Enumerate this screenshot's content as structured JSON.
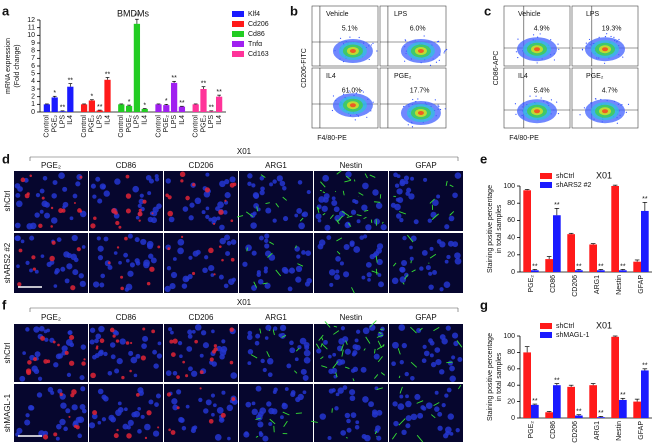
{
  "panel_labels": [
    "a",
    "b",
    "c",
    "d",
    "e",
    "f",
    "g"
  ],
  "chart_data": [
    {
      "type": "bar",
      "group_by": "series",
      "title": "BMDMs",
      "ylabel": [
        "mRNA expression",
        "(Fold change)"
      ],
      "categories": [
        "Control",
        "PGE₂",
        "LPS",
        "IL4"
      ],
      "series": [
        {
          "name": "Klf4",
          "color": "#1a1aff",
          "values": [
            1,
            1.9,
            0.1,
            3.3
          ],
          "errors": [
            0.05,
            0.15,
            0.05,
            0.4
          ],
          "annotations": [
            null,
            "*",
            "**",
            "**"
          ]
        },
        {
          "name": "Cd206",
          "color": "#ff1a1a",
          "values": [
            1,
            1.5,
            0.2,
            4.2
          ],
          "errors": [
            0.05,
            0.1,
            0.05,
            0.3
          ],
          "annotations": [
            null,
            "*",
            "**",
            "**"
          ]
        },
        {
          "name": "Cd86",
          "color": "#22cc22",
          "values": [
            1,
            0.8,
            11.5,
            0.4
          ],
          "errors": [
            0.05,
            0.1,
            0.6,
            0.05
          ],
          "annotations": [
            null,
            "*",
            "**",
            "*"
          ]
        },
        {
          "name": "Tnfα",
          "color": "#a020f0",
          "values": [
            1,
            0.9,
            3.8,
            0.7
          ],
          "errors": [
            0.05,
            0.1,
            0.2,
            0.05
          ],
          "annotations": [
            null,
            "*",
            "**",
            "**"
          ]
        },
        {
          "name": "Cd163",
          "color": "#ff3399",
          "values": [
            1,
            3.0,
            0.1,
            2.0
          ],
          "errors": [
            0.05,
            0.3,
            0.05,
            0.2
          ],
          "annotations": [
            null,
            "**",
            "**",
            "**"
          ]
        }
      ],
      "ylim": [
        0,
        12
      ],
      "yticks": [
        0,
        1,
        2,
        3,
        4,
        5,
        6,
        7,
        8,
        9,
        10,
        11,
        12
      ],
      "legend": "right"
    },
    {
      "type": "bar",
      "group_by": "category",
      "title": "X01",
      "ylabel": [
        "Staining positive percentage",
        "in total samples"
      ],
      "categories": [
        "PGE₂",
        "CD86",
        "CD206",
        "ARG1",
        "Nestin",
        "GFAP"
      ],
      "series": [
        {
          "name": "shCtrl",
          "color": "#ff1a1a",
          "values": [
            95,
            15,
            44,
            32,
            100,
            12
          ],
          "errors": [
            1,
            3,
            1,
            1,
            1,
            2
          ]
        },
        {
          "name": "shARS2 #2",
          "color": "#1a1aff",
          "values": [
            2,
            66,
            2,
            2,
            2,
            71
          ],
          "errors": [
            1,
            8,
            1,
            1,
            1,
            10
          ],
          "annotations": [
            "**",
            "**",
            "**",
            "**",
            "**",
            "**"
          ]
        }
      ],
      "ylim": [
        0,
        100
      ],
      "yticks": [
        0,
        20,
        40,
        60,
        80,
        100
      ],
      "legend": "upper left"
    },
    {
      "type": "bar",
      "group_by": "category",
      "title": "X01",
      "ylabel": [
        "Staining positive percentage",
        "in total samples"
      ],
      "categories": [
        "PGE₂",
        "CD86",
        "CD206",
        "ARG1",
        "Nestin",
        "GFAP"
      ],
      "series": [
        {
          "name": "shCtrl",
          "color": "#ff1a1a",
          "values": [
            80,
            7,
            38,
            40,
            99,
            20
          ],
          "errors": [
            7,
            1,
            2,
            2,
            1,
            3
          ]
        },
        {
          "name": "shMAGL-1",
          "color": "#1a1aff",
          "values": [
            16,
            40,
            3,
            1,
            22,
            58
          ],
          "errors": [
            1,
            2,
            1,
            1,
            2,
            2
          ],
          "annotations": [
            "**",
            "**",
            "**",
            "**",
            "**",
            "**"
          ]
        }
      ],
      "ylim": [
        0,
        100
      ],
      "yticks": [
        0,
        20,
        40,
        60,
        80,
        100
      ],
      "legend": "upper left"
    }
  ],
  "flow": [
    {
      "ylabel": "CD206-FITC",
      "xlabel": "F4/80-PE",
      "quadrants": [
        {
          "label": "Vehicle",
          "percent": "5.1%"
        },
        {
          "label": "LPS",
          "percent": "6.0%"
        },
        {
          "label": "IL4",
          "percent": "61.0%"
        },
        {
          "label": "PGE₂",
          "percent": "17.7%"
        }
      ]
    },
    {
      "ylabel": "CD86-APC",
      "xlabel": "F4/80-PE",
      "quadrants": [
        {
          "label": "Vehicle",
          "percent": "4.9%"
        },
        {
          "label": "LPS",
          "percent": "19.3%"
        },
        {
          "label": "IL4",
          "percent": "5.4%"
        },
        {
          "label": "PGE₂",
          "percent": "4.7%"
        }
      ]
    }
  ],
  "micro": [
    {
      "header": "X01",
      "columns": [
        "PGE₂",
        "CD86",
        "CD206",
        "ARG1",
        "Nestin",
        "GFAP"
      ],
      "rows": [
        "shCtrl",
        "shARS2 #2"
      ]
    },
    {
      "header": "X01",
      "columns": [
        "PGE₂",
        "CD86",
        "CD206",
        "ARG1",
        "Nestin",
        "GFAP"
      ],
      "rows": [
        "shCtrl",
        "shMAGL-1"
      ]
    }
  ]
}
